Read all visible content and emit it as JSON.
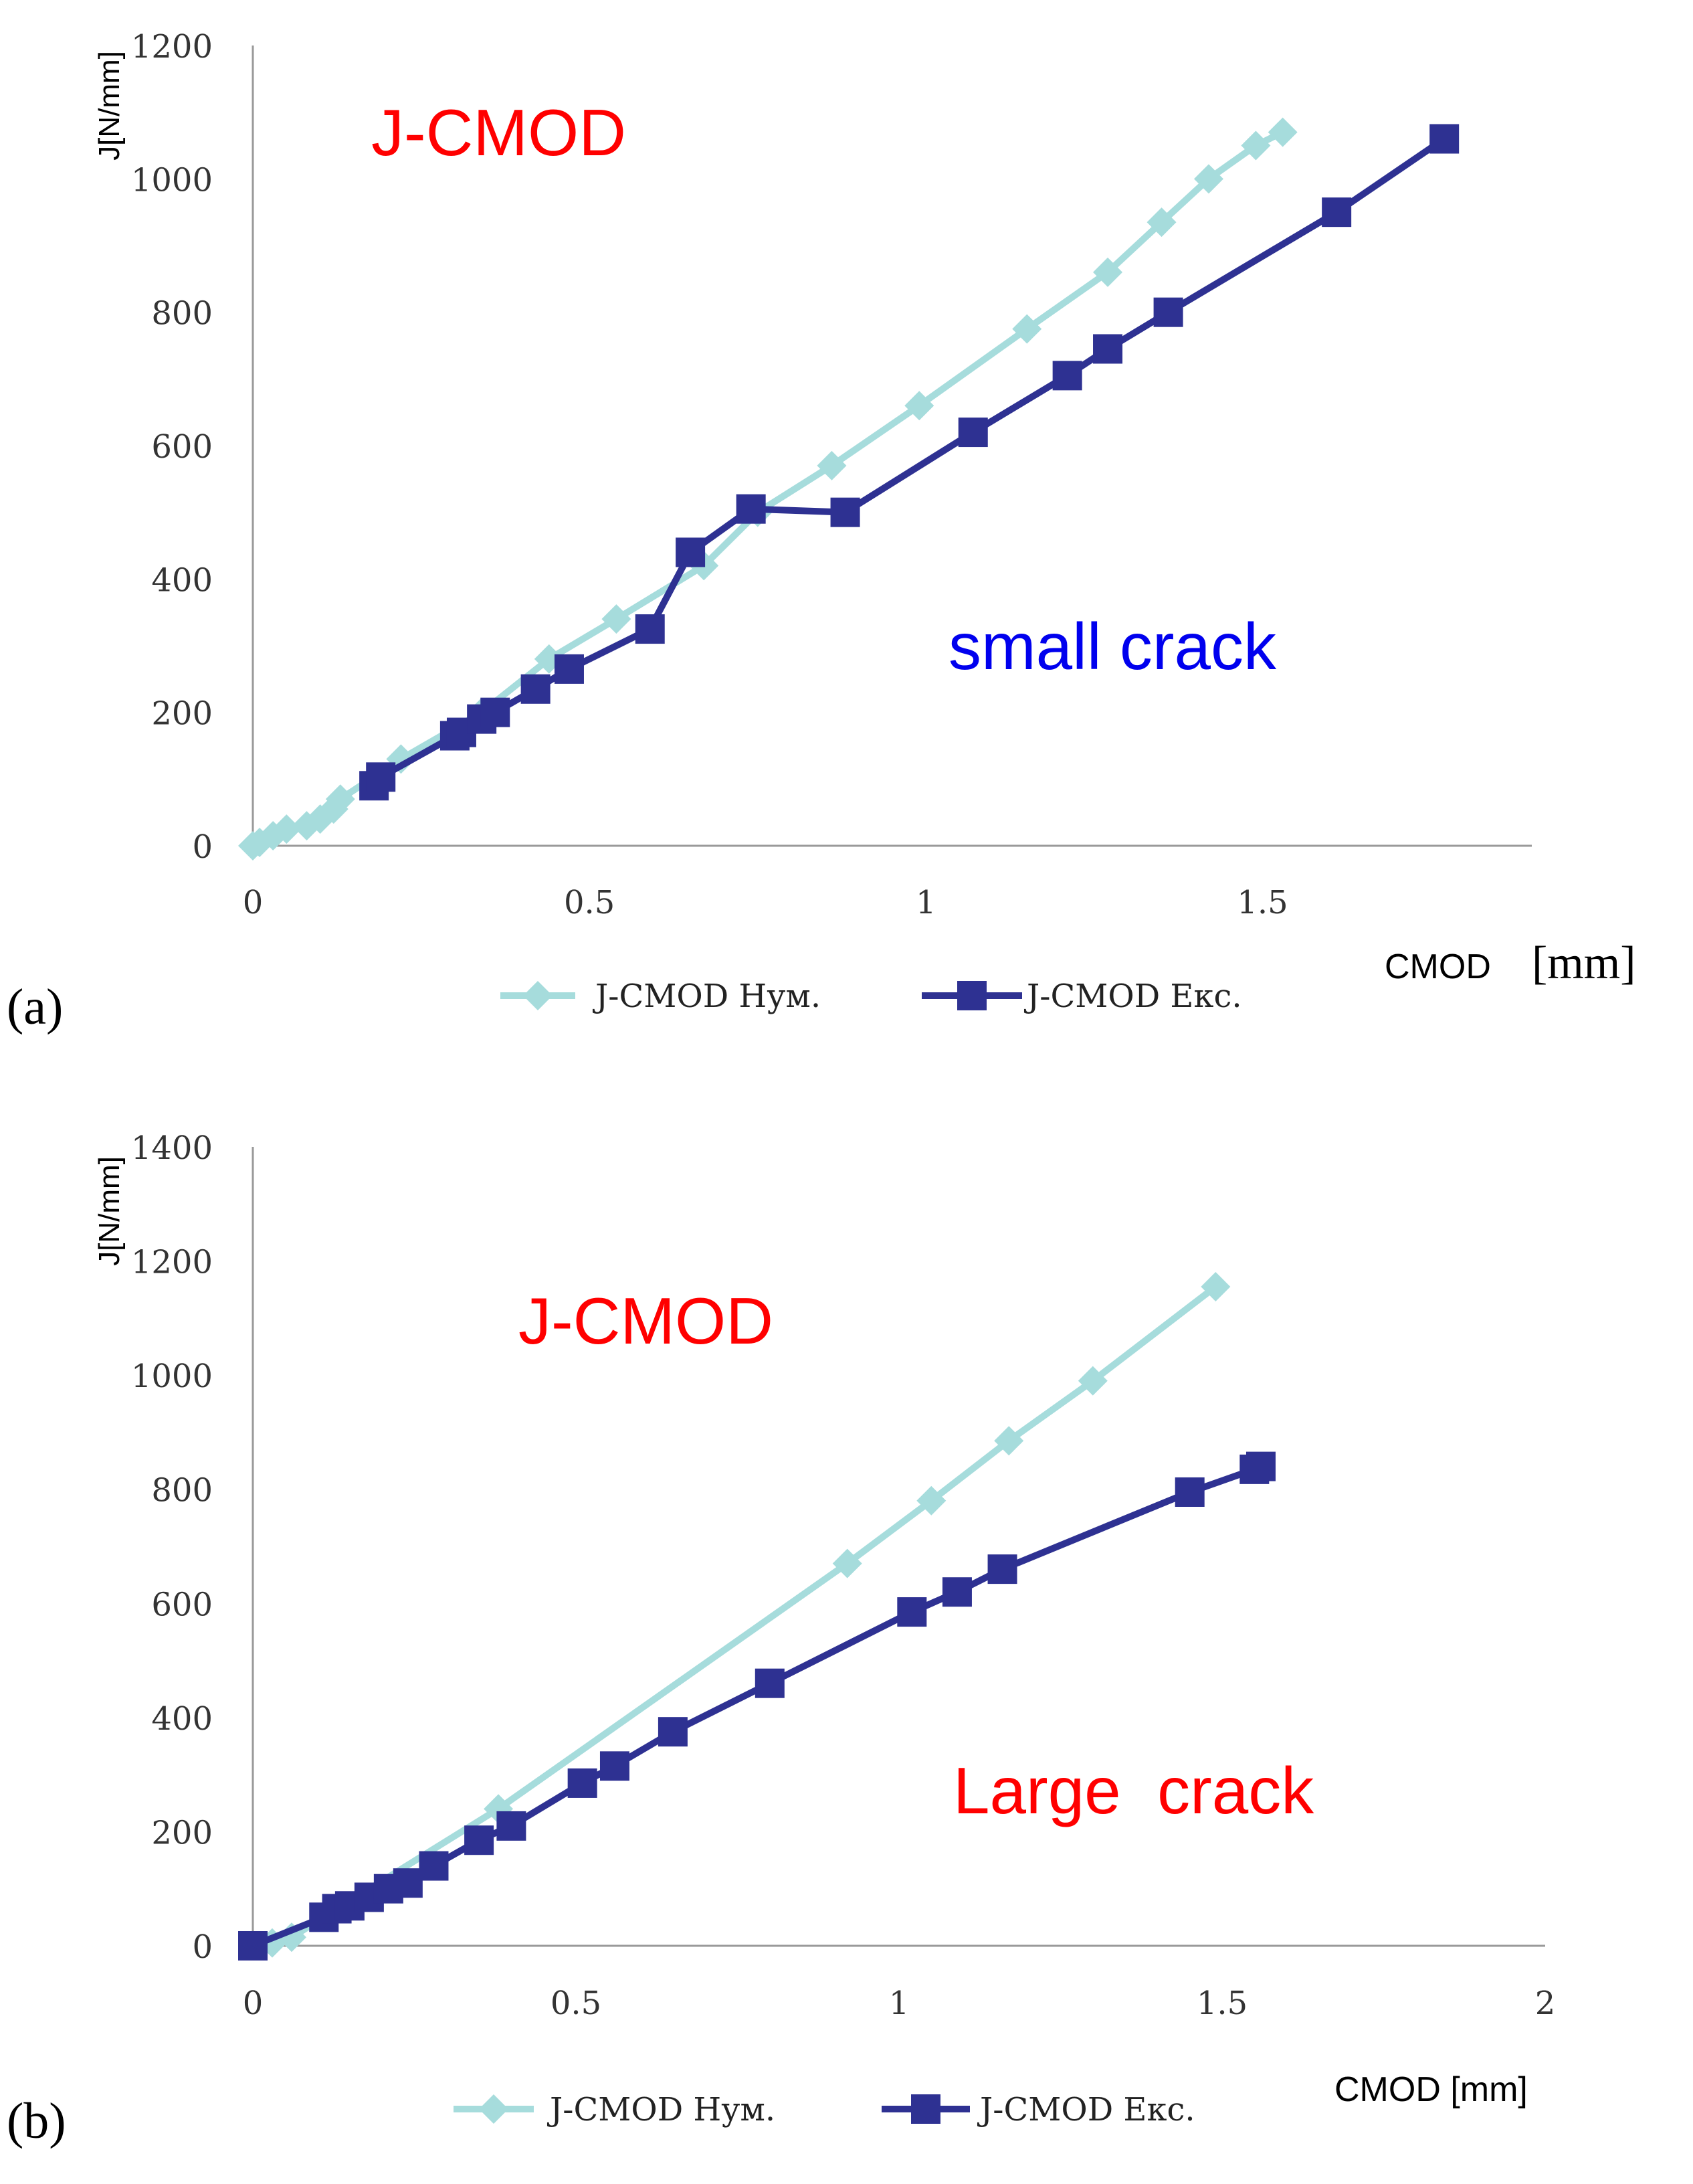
{
  "colors": {
    "numerical": "#a6dcdc",
    "experimental": "#2e3192",
    "title_red": "#ff0000",
    "annotation_blue": "#0000ee",
    "axis": "#9a9a9a"
  },
  "chart_data": [
    {
      "type": "line",
      "panel_label": "(a)",
      "title": "J-CMOD",
      "annotation": "small crack",
      "xlabel": "CMOD",
      "xlabel_unit": "[mm]",
      "ylabel": "J[N/mm]",
      "xlim": [
        0,
        1.9
      ],
      "ylim": [
        0,
        1200
      ],
      "xticks": [
        "0",
        "0.5",
        "1",
        "1.5"
      ],
      "yticks": [
        "0",
        "200",
        "400",
        "600",
        "800",
        "1000",
        "1200"
      ],
      "legend": [
        "J-CMOD Нум.",
        "J-CMOD Екс."
      ],
      "series": [
        {
          "name": "J-CMOD Нум.",
          "marker": "diamond",
          "x": [
            0,
            0.01,
            0.03,
            0.05,
            0.08,
            0.1,
            0.12,
            0.13,
            0.22,
            0.34,
            0.44,
            0.54,
            0.67,
            0.75,
            0.86,
            0.99,
            1.15,
            1.27,
            1.35,
            1.42,
            1.49,
            1.53
          ],
          "y": [
            0,
            5,
            15,
            25,
            30,
            40,
            55,
            70,
            130,
            200,
            280,
            340,
            420,
            500,
            570,
            660,
            775,
            860,
            935,
            1000,
            1050,
            1070
          ]
        },
        {
          "name": "J-CMOD Екс.",
          "marker": "square",
          "x": [
            0.18,
            0.19,
            0.3,
            0.31,
            0.34,
            0.36,
            0.42,
            0.47,
            0.59,
            0.65,
            0.74,
            0.88,
            1.07,
            1.21,
            1.27,
            1.36,
            1.61,
            1.77
          ],
          "y": [
            90,
            103,
            165,
            170,
            190,
            200,
            235,
            265,
            325,
            440,
            505,
            500,
            620,
            705,
            745,
            800,
            950,
            1060
          ]
        }
      ]
    },
    {
      "type": "line",
      "panel_label": "(b)",
      "title": "J-CMOD",
      "annotation": "Large  crack",
      "xlabel": "CMOD [mm]",
      "xlabel_unit": "",
      "ylabel": "J[N/mm]",
      "xlim": [
        0,
        2
      ],
      "ylim": [
        0,
        1400
      ],
      "xticks": [
        "0",
        "0.5",
        "1",
        "1.5",
        "2"
      ],
      "yticks": [
        "0",
        "200",
        "400",
        "600",
        "800",
        "1000",
        "1200",
        "1400"
      ],
      "legend": [
        "J-CMOD Нум.",
        "J-CMOD Екс."
      ],
      "series": [
        {
          "name": "J-CMOD Нум.",
          "marker": "diamond",
          "x": [
            0,
            0.03,
            0.06,
            0.38,
            0.92,
            1.05,
            1.17,
            1.3,
            1.49
          ],
          "y": [
            0,
            5,
            15,
            240,
            670,
            780,
            885,
            990,
            1155
          ]
        },
        {
          "name": "J-CMOD Екс.",
          "marker": "square",
          "x": [
            0,
            0.11,
            0.13,
            0.15,
            0.18,
            0.21,
            0.24,
            0.28,
            0.35,
            0.4,
            0.51,
            0.56,
            0.65,
            0.8,
            1.02,
            1.09,
            1.16,
            1.45,
            1.55,
            1.56
          ],
          "y": [
            0,
            50,
            65,
            70,
            85,
            100,
            110,
            140,
            185,
            210,
            285,
            315,
            375,
            460,
            585,
            620,
            660,
            795,
            835,
            840
          ]
        }
      ]
    }
  ]
}
